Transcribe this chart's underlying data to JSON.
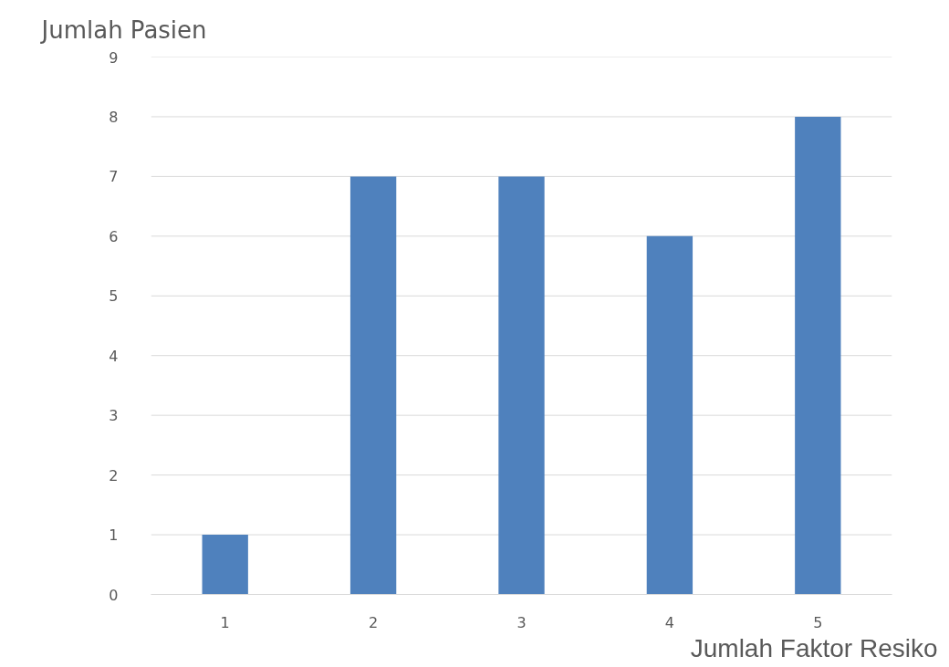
{
  "chart_data": {
    "type": "bar",
    "ylabel": "Jumlah Pasien",
    "xlabel": "Jumlah Faktor Resiko",
    "categories": [
      "1",
      "2",
      "3",
      "4",
      "5"
    ],
    "values": [
      1,
      7,
      7,
      6,
      8
    ],
    "color": "#4f81bd",
    "ylim": [
      0,
      9
    ],
    "yticks": [
      0,
      1,
      2,
      3,
      4,
      5,
      6,
      7,
      8,
      9
    ],
    "grid": "y"
  }
}
